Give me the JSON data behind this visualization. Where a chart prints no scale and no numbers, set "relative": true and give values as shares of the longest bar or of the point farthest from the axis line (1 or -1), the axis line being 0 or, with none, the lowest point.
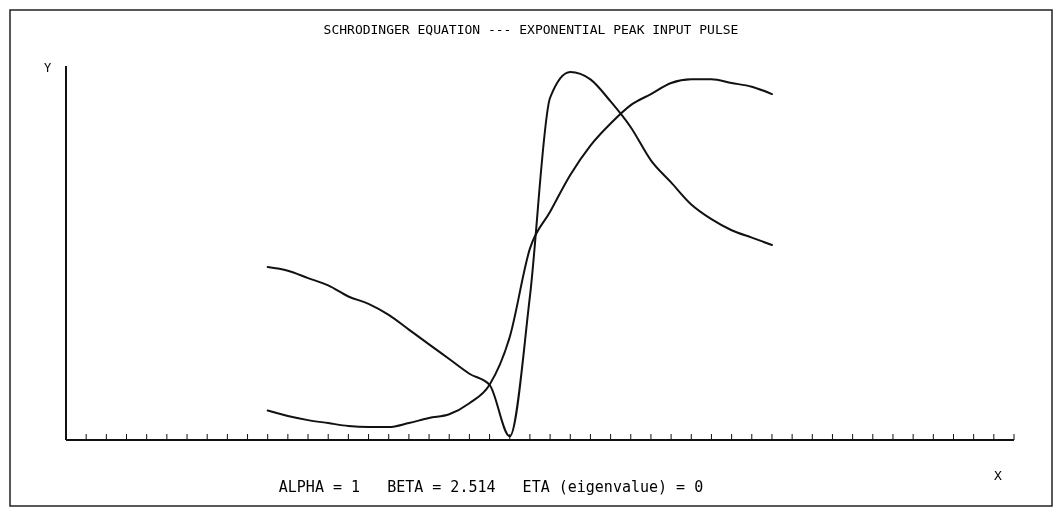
{
  "chart_data": {
    "type": "line",
    "title": "SCHRODINGER EQUATION --- EXPONENTIAL PEAK INPUT PULSE",
    "xlabel": "X",
    "ylabel": "Y",
    "relative": true,
    "line_style": "solid",
    "annotations": [
      "ALPHA = 1   BETA = 2.514   ETA (eigenvalue) = 0"
    ],
    "categories": [
      null,
      null,
      null,
      null,
      null,
      null,
      null,
      null,
      null,
      null,
      null,
      null,
      null,
      null,
      null,
      null,
      null,
      null,
      null,
      null,
      null,
      null,
      null,
      null,
      null,
      null,
      null,
      null,
      null,
      null,
      null,
      null,
      null,
      null,
      null,
      null,
      null,
      null,
      null,
      null,
      null,
      null,
      null,
      null,
      null,
      null,
      null,
      null
    ],
    "series": [
      {
        "color": "#111111",
        "values": [
          null,
          null,
          null,
          null,
          null,
          null,
          null,
          null,
          null,
          null,
          0.47,
          0.46,
          0.44,
          0.42,
          0.39,
          0.37,
          0.34,
          0.3,
          0.26,
          0.22,
          0.18,
          0.15,
          0.01,
          0.39,
          0.93,
          1,
          0.98,
          0.92,
          0.85,
          0.76,
          0.7,
          0.64,
          0.6,
          0.57,
          0.55,
          0.53,
          null,
          null,
          null,
          null,
          null,
          null,
          null,
          null,
          null,
          null,
          null,
          null
        ]
      },
      {
        "color": "#111111",
        "values": [
          null,
          null,
          null,
          null,
          null,
          null,
          null,
          null,
          null,
          null,
          0.08,
          0.065,
          0.054,
          0.046,
          0.038,
          0.035,
          0.035,
          0.046,
          0.06,
          0.07,
          0.1,
          0.15,
          0.28,
          0.52,
          0.62,
          0.72,
          0.8,
          0.86,
          0.91,
          0.94,
          0.97,
          0.98,
          0.98,
          0.97,
          0.96,
          0.94,
          null,
          null,
          null,
          null,
          null,
          null,
          null,
          null,
          null,
          null,
          null,
          null
        ]
      }
    ]
  }
}
